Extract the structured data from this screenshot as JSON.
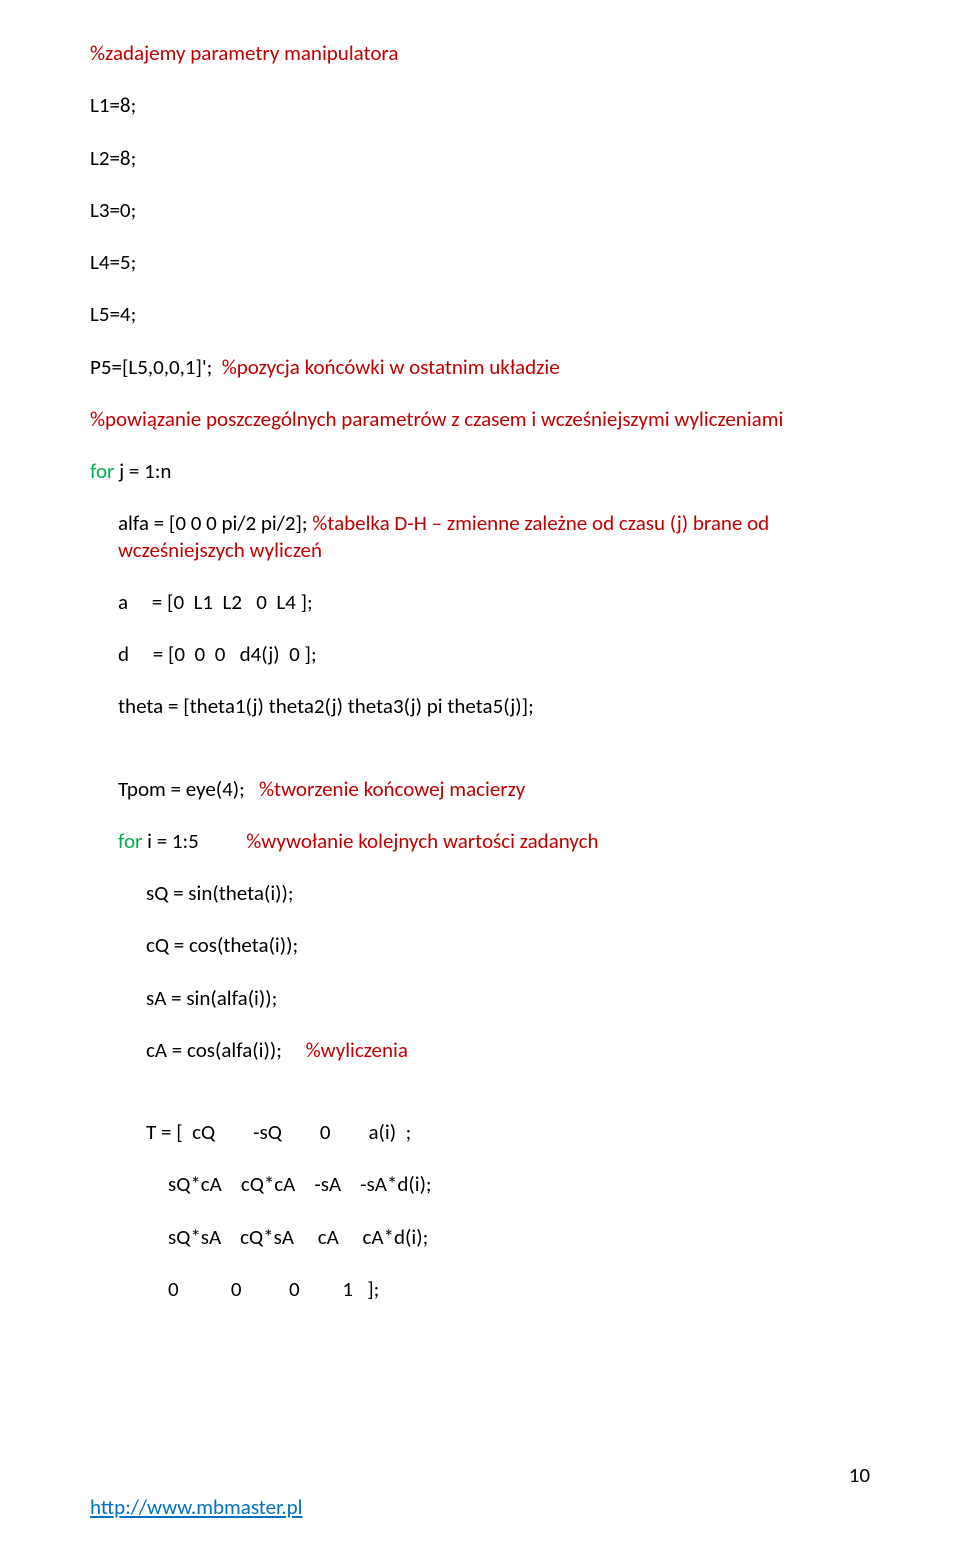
{
  "colors": {
    "comment": "#c00000",
    "keyword": "#00b050",
    "link": "#0070c0",
    "text": "#000000",
    "background": "#ffffff"
  },
  "font": {
    "family": "Calibri",
    "size_pt": 16
  },
  "l01": "%zadajemy parametry manipulatora",
  "l02": "L1=8;",
  "l03": "L2=8;",
  "l04": "L3=0;",
  "l05": "L4=5;",
  "l06": "L5=4;",
  "l07a": "P5=[L5,0,0,1]';  ",
  "l07b": "%pozycja końcówki w ostatnim układzie",
  "l08": "%powiązanie poszczególnych parametrów z czasem i wcześniejszymi wyliczeniami",
  "l09a": "for",
  "l09b": " j = 1:n",
  "l10a": "alfa = [0 0 0 pi/2 pi/2];      ",
  "l10b": "%tabelka D-H – zmienne zależne od czasu (j) brane od wcześniejszych wyliczeń",
  "l11": "a     = [0  L1  L2   0  L4 ];",
  "l12": "d     = [0  0  0   d4(j)  0 ];",
  "l13": "theta = [theta1(j) theta2(j) theta3(j) pi theta5(j)];",
  "l14a": "Tpom = eye(4);   ",
  "l14b": "%tworzenie końcowej macierzy",
  "l15a": "for",
  "l15b": " i = 1:5          ",
  "l15c": "%wywołanie kolejnych wartości zadanych",
  "l16": "sQ = sin(theta(i));",
  "l17": "cQ = cos(theta(i));",
  "l18": "sA = sin(alfa(i));",
  "l19a": "cA = cos(alfa(i));     ",
  "l19b": "%wyliczenia",
  "l20": "T = [  cQ        -sQ        0        a(i)  ;",
  "l21": "sQ*cA    cQ*cA    -sA    -sA*d(i);",
  "l22": "sQ*sA    cQ*sA     cA     cA*d(i);",
  "l23": "0           0          0         1   ];",
  "footer_link": "http://www.mbmaster.pl",
  "page_number": "10"
}
